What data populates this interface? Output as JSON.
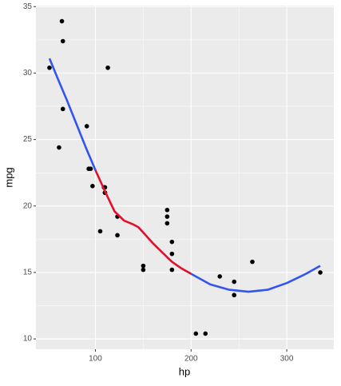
{
  "chart_data": {
    "type": "scatter",
    "x_label": "hp",
    "y_label": "mpg",
    "x": [
      110,
      110,
      93,
      110,
      175,
      105,
      245,
      62,
      95,
      123,
      123,
      180,
      180,
      180,
      205,
      215,
      230,
      66,
      52,
      65,
      97,
      150,
      150,
      245,
      175,
      66,
      91,
      113,
      264,
      175,
      335,
      109
    ],
    "y": [
      21.0,
      21.0,
      22.8,
      21.4,
      18.7,
      18.1,
      14.3,
      24.4,
      22.8,
      19.2,
      17.8,
      16.4,
      17.3,
      15.2,
      10.4,
      10.4,
      14.7,
      32.4,
      30.4,
      33.9,
      21.5,
      15.5,
      15.2,
      13.3,
      19.2,
      27.3,
      26.0,
      30.4,
      15.8,
      19.7,
      15.0,
      21.4
    ],
    "color": "#000000",
    "smooth": {
      "x": [
        52,
        60,
        70,
        80,
        90,
        100,
        110,
        120,
        130,
        140,
        145,
        150,
        160,
        170,
        180,
        190,
        200,
        220,
        240,
        260,
        280,
        300,
        320,
        335
      ],
      "series": [
        {
          "color": "#3355ee",
          "values": [
            31.1,
            29.7,
            28.0,
            26.2,
            24.4,
            22.7,
            null,
            null,
            null,
            null,
            null,
            null,
            null,
            null,
            null,
            null,
            14.9,
            14.1,
            13.7,
            13.55,
            13.7,
            14.2,
            14.9,
            15.5
          ]
        },
        {
          "color": "#e0102a",
          "values": [
            null,
            null,
            null,
            null,
            null,
            22.7,
            21.1,
            19.6,
            18.9,
            18.6,
            18.4,
            18.0,
            17.2,
            16.5,
            15.8,
            15.3,
            14.9,
            null,
            null,
            null,
            null,
            null,
            null,
            null
          ]
        }
      ]
    },
    "xlim": [
      37.85,
      349.15
    ],
    "ylim": [
      9.225,
      35.075
    ],
    "xticks": [
      100,
      200,
      300
    ],
    "yticks": [
      10,
      15,
      20,
      25,
      30,
      35
    ],
    "grid": true
  }
}
